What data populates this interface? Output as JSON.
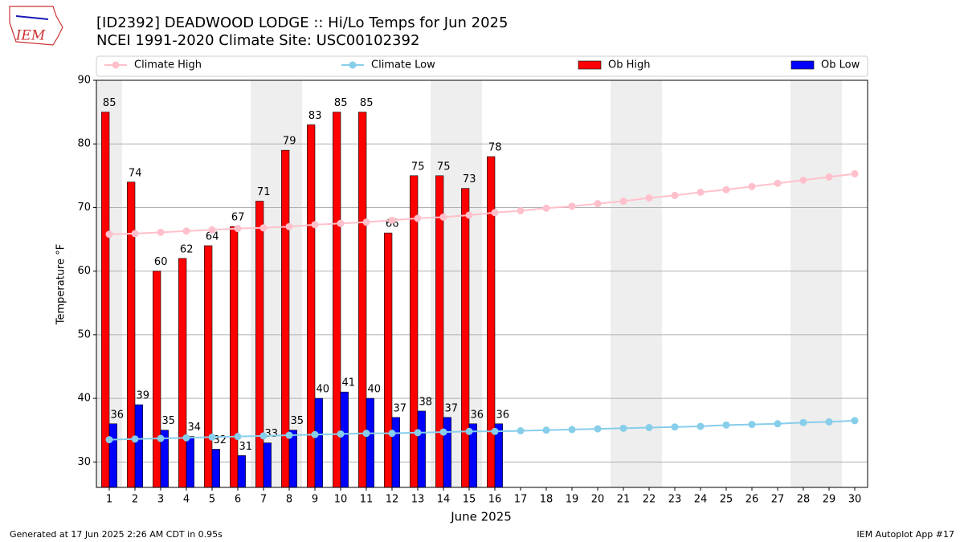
{
  "chart_data": {
    "type": "bar",
    "title": "[ID2392] DEADWOOD LODGE :: Hi/Lo Temps for Jun 2025",
    "subtitle": "NCEI 1991-2020 Climate Site: USC00102392",
    "logo": "IEM",
    "xlabel": "June 2025",
    "ylabel": "Temperature °F",
    "footer_left": "Generated at 17 Jun 2025 2:26 AM CDT in 0.95s",
    "footer_right": "IEM Autoplot App #17",
    "x": [
      1,
      2,
      3,
      4,
      5,
      6,
      7,
      8,
      9,
      10,
      11,
      12,
      13,
      14,
      15,
      16,
      17,
      18,
      19,
      20,
      21,
      22,
      23,
      24,
      25,
      26,
      27,
      28,
      29,
      30
    ],
    "xlim": [
      0.5,
      30.5
    ],
    "xticks": [
      1,
      2,
      3,
      4,
      5,
      6,
      7,
      8,
      9,
      10,
      11,
      12,
      13,
      14,
      15,
      16,
      17,
      18,
      19,
      20,
      21,
      22,
      23,
      24,
      25,
      26,
      27,
      28,
      29,
      30
    ],
    "ylim": [
      26,
      90
    ],
    "yticks": [
      30,
      40,
      50,
      60,
      70,
      80,
      90
    ],
    "grid": true,
    "shaded_days": [
      1,
      7,
      8,
      14,
      15,
      21,
      22,
      28,
      29
    ],
    "series": [
      {
        "name": "Climate High",
        "type": "line",
        "color": "#ffc0cb",
        "values": [
          65.8,
          65.9,
          66.1,
          66.3,
          66.5,
          66.7,
          66.8,
          67.0,
          67.3,
          67.5,
          67.7,
          68.0,
          68.3,
          68.5,
          68.8,
          69.2,
          69.5,
          69.9,
          70.2,
          70.6,
          71.0,
          71.5,
          71.9,
          72.4,
          72.8,
          73.3,
          73.8,
          74.3,
          74.8,
          75.3
        ]
      },
      {
        "name": "Climate Low",
        "type": "line",
        "color": "#87ceeb",
        "values": [
          33.5,
          33.6,
          33.7,
          33.8,
          33.9,
          34.0,
          34.1,
          34.2,
          34.3,
          34.4,
          34.5,
          34.5,
          34.6,
          34.7,
          34.8,
          34.8,
          34.9,
          35.0,
          35.1,
          35.2,
          35.3,
          35.4,
          35.5,
          35.6,
          35.8,
          35.9,
          36.0,
          36.2,
          36.3,
          36.5
        ]
      },
      {
        "name": "Ob High",
        "type": "bar",
        "color": "#ff0000",
        "values": [
          85,
          74,
          60,
          62,
          64,
          67,
          71,
          79,
          83,
          85,
          85,
          66,
          75,
          75,
          73,
          78,
          null,
          null,
          null,
          null,
          null,
          null,
          null,
          null,
          null,
          null,
          null,
          null,
          null,
          null
        ]
      },
      {
        "name": "Ob Low",
        "type": "bar",
        "color": "#0000ff",
        "values": [
          36,
          39,
          35,
          34,
          32,
          31,
          33,
          35,
          40,
          41,
          40,
          37,
          38,
          37,
          36,
          36,
          null,
          null,
          null,
          null,
          null,
          null,
          null,
          null,
          null,
          null,
          null,
          null,
          null,
          null
        ]
      }
    ]
  }
}
